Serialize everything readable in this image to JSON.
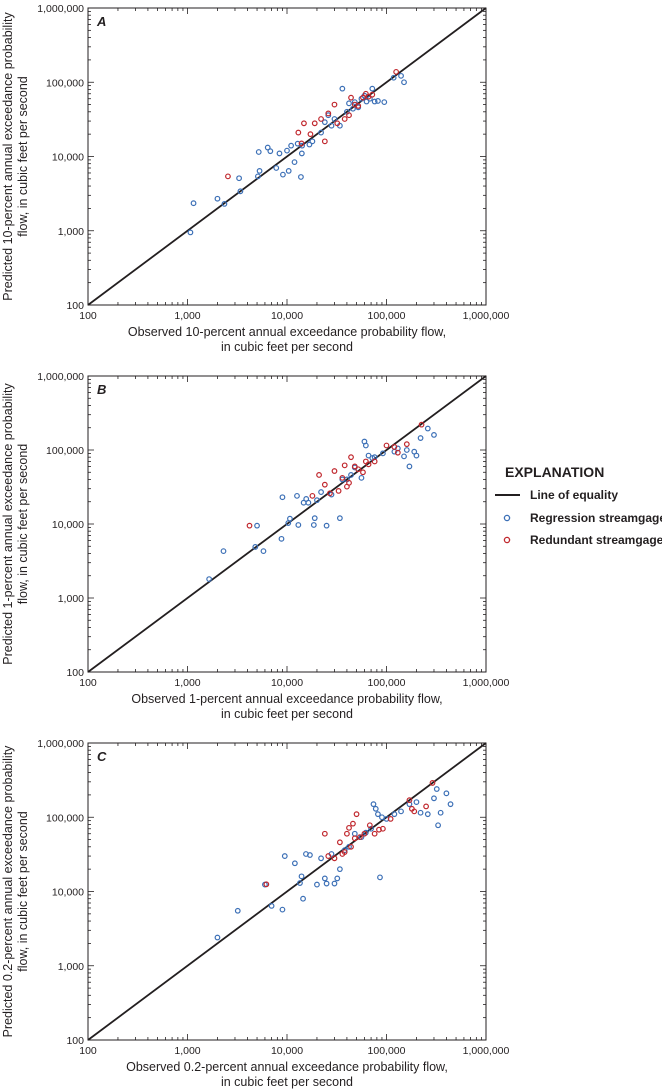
{
  "chart_data": [
    {
      "type": "scatter",
      "panel": "A",
      "xlabel": [
        "Observed 10-percent annual exceedance probability flow,",
        "in cubic feet per second"
      ],
      "ylabel": [
        "Predicted 10-percent annual exceedance probability",
        "flow, in cubic feet per second"
      ],
      "xscale": "log",
      "yscale": "log",
      "xlim": [
        100,
        1000000
      ],
      "ylim": [
        100,
        1000000
      ],
      "ticks": [
        "100",
        "1,000",
        "10,000",
        "100,000",
        "1,000,000"
      ],
      "tick_values": [
        100,
        1000,
        10000,
        100000,
        1000000
      ],
      "grid": false,
      "series": [
        {
          "name": "Regression streamgage",
          "color": "#3b6fb6",
          "points": [
            [
              1070,
              950
            ],
            [
              1150,
              2350
            ],
            [
              2000,
              2700
            ],
            [
              2350,
              2300
            ],
            [
              3400,
              3400
            ],
            [
              3300,
              5100
            ],
            [
              5100,
              5400
            ],
            [
              5300,
              6400
            ],
            [
              5200,
              11500
            ],
            [
              6400,
              13200
            ],
            [
              6800,
              11800
            ],
            [
              7800,
              7000
            ],
            [
              8400,
              11000
            ],
            [
              9100,
              5700
            ],
            [
              10000,
              12000
            ],
            [
              10400,
              6400
            ],
            [
              11000,
              14000
            ],
            [
              11900,
              8400
            ],
            [
              12800,
              14900
            ],
            [
              14100,
              11000
            ],
            [
              13800,
              5300
            ],
            [
              14200,
              14000
            ],
            [
              16800,
              14500
            ],
            [
              18000,
              16000
            ],
            [
              22000,
              21000
            ],
            [
              24000,
              29000
            ],
            [
              26000,
              36000
            ],
            [
              28000,
              26000
            ],
            [
              30000,
              32000
            ],
            [
              34000,
              26000
            ],
            [
              36000,
              82000
            ],
            [
              40000,
              40000
            ],
            [
              42000,
              52000
            ],
            [
              46000,
              44000
            ],
            [
              48000,
              54000
            ],
            [
              52000,
              46000
            ],
            [
              56000,
              60000
            ],
            [
              60000,
              66000
            ],
            [
              63000,
              55000
            ],
            [
              68000,
              60000
            ],
            [
              72000,
              82000
            ],
            [
              76000,
              55000
            ],
            [
              82000,
              56000
            ],
            [
              95000,
              54000
            ],
            [
              118000,
              115000
            ],
            [
              140000,
              122000
            ],
            [
              150000,
              100000
            ]
          ]
        },
        {
          "name": "Redundant streamgage",
          "color": "#c0272d",
          "points": [
            [
              2550,
              5400
            ],
            [
              13000,
              21000
            ],
            [
              14000,
              15000
            ],
            [
              14800,
              28000
            ],
            [
              17200,
              20000
            ],
            [
              19000,
              28000
            ],
            [
              22000,
              32000
            ],
            [
              24000,
              16000
            ],
            [
              26000,
              38000
            ],
            [
              30000,
              50000
            ],
            [
              32000,
              28000
            ],
            [
              38000,
              32000
            ],
            [
              42000,
              36000
            ],
            [
              44000,
              62000
            ],
            [
              48000,
              50000
            ],
            [
              52000,
              48000
            ],
            [
              58000,
              62000
            ],
            [
              62000,
              70000
            ],
            [
              66000,
              64000
            ],
            [
              72000,
              68000
            ],
            [
              125000,
              138000
            ]
          ]
        }
      ]
    },
    {
      "type": "scatter",
      "panel": "B",
      "xlabel": [
        "Observed 1-percent annual exceedance probability flow,",
        "in cubic feet per second"
      ],
      "ylabel": [
        "Predicted 1-percent annual exceedance probability",
        "flow, in cubic feet per second"
      ],
      "xscale": "log",
      "yscale": "log",
      "xlim": [
        100,
        1000000
      ],
      "ylim": [
        100,
        1000000
      ],
      "ticks": [
        "100",
        "1,000",
        "10,000",
        "100,000",
        "1,000,000"
      ],
      "tick_values": [
        100,
        1000,
        10000,
        100000,
        1000000
      ],
      "grid": false,
      "series": [
        {
          "name": "Regression streamgage",
          "color": "#3b6fb6",
          "points": [
            [
              1650,
              1800
            ],
            [
              2300,
              4300
            ],
            [
              4800,
              4900
            ],
            [
              5000,
              9500
            ],
            [
              5800,
              4300
            ],
            [
              8800,
              6300
            ],
            [
              9000,
              23000
            ],
            [
              10300,
              10300
            ],
            [
              10700,
              11800
            ],
            [
              13000,
              9700
            ],
            [
              12600,
              24000
            ],
            [
              14700,
              19400
            ],
            [
              15600,
              21800
            ],
            [
              16400,
              19400
            ],
            [
              18600,
              9700
            ],
            [
              19000,
              12000
            ],
            [
              20000,
              21000
            ],
            [
              22000,
              27000
            ],
            [
              25000,
              9500
            ],
            [
              28000,
              25000
            ],
            [
              34000,
              12000
            ],
            [
              36000,
              40000
            ],
            [
              40000,
              40000
            ],
            [
              44000,
              46000
            ],
            [
              48000,
              58000
            ],
            [
              56000,
              42000
            ],
            [
              60000,
              130000
            ],
            [
              62000,
              115000
            ],
            [
              66000,
              84000
            ],
            [
              72000,
              78000
            ],
            [
              76000,
              80000
            ],
            [
              92000,
              90000
            ],
            [
              120000,
              95000
            ],
            [
              130000,
              105000
            ],
            [
              150000,
              82000
            ],
            [
              160000,
              100000
            ],
            [
              170000,
              60000
            ],
            [
              190000,
              95000
            ],
            [
              200000,
              84000
            ],
            [
              220000,
              145000
            ],
            [
              260000,
              195000
            ],
            [
              300000,
              160000
            ]
          ]
        },
        {
          "name": "Redundant streamgage",
          "color": "#c0272d",
          "points": [
            [
              4200,
              9500
            ],
            [
              18000,
              24000
            ],
            [
              21000,
              46000
            ],
            [
              24000,
              34000
            ],
            [
              27000,
              26000
            ],
            [
              30000,
              52000
            ],
            [
              33000,
              28000
            ],
            [
              36000,
              42000
            ],
            [
              38000,
              62000
            ],
            [
              40000,
              32000
            ],
            [
              42000,
              36000
            ],
            [
              44000,
              80000
            ],
            [
              48000,
              60000
            ],
            [
              52000,
              55000
            ],
            [
              58000,
              50000
            ],
            [
              62000,
              70000
            ],
            [
              66000,
              64000
            ],
            [
              76000,
              70000
            ],
            [
              100000,
              115000
            ],
            [
              120000,
              110000
            ],
            [
              130000,
              92000
            ],
            [
              160000,
              120000
            ],
            [
              225000,
              220000
            ]
          ]
        }
      ]
    },
    {
      "type": "scatter",
      "panel": "C",
      "xlabel": [
        "Observed 0.2-percent annual exceedance probability flow,",
        "in cubic feet per second"
      ],
      "ylabel": [
        "Predicted 0.2-percent annual exceedance probability",
        "flow, in cubic feet per second"
      ],
      "xscale": "log",
      "yscale": "log",
      "xlim": [
        100,
        1000000
      ],
      "ylim": [
        100,
        1000000
      ],
      "ticks": [
        "100",
        "1,000",
        "10,000",
        "100,000",
        "1,000,000"
      ],
      "tick_values": [
        100,
        1000,
        10000,
        100000,
        1000000
      ],
      "grid": false,
      "series": [
        {
          "name": "Regression streamgage",
          "color": "#3b6fb6",
          "points": [
            [
              2000,
              2400
            ],
            [
              3200,
              5500
            ],
            [
              6000,
              12400
            ],
            [
              7000,
              6400
            ],
            [
              9000,
              5700
            ],
            [
              9500,
              30000
            ],
            [
              12000,
              24000
            ],
            [
              13500,
              13000
            ],
            [
              14000,
              16000
            ],
            [
              14500,
              8000
            ],
            [
              15500,
              32000
            ],
            [
              17000,
              31000
            ],
            [
              20000,
              12400
            ],
            [
              22000,
              28000
            ],
            [
              24000,
              15000
            ],
            [
              25000,
              12800
            ],
            [
              28000,
              32000
            ],
            [
              30000,
              12800
            ],
            [
              32000,
              15000
            ],
            [
              34000,
              20000
            ],
            [
              38000,
              36000
            ],
            [
              42000,
              40000
            ],
            [
              48000,
              60000
            ],
            [
              56000,
              54000
            ],
            [
              62000,
              62000
            ],
            [
              70000,
              70000
            ],
            [
              74000,
              150000
            ],
            [
              78000,
              130000
            ],
            [
              82000,
              110000
            ],
            [
              86000,
              15500
            ],
            [
              90000,
              100000
            ],
            [
              100000,
              95000
            ],
            [
              120000,
              110000
            ],
            [
              140000,
              120000
            ],
            [
              170000,
              150000
            ],
            [
              200000,
              160000
            ],
            [
              220000,
              115000
            ],
            [
              260000,
              110000
            ],
            [
              300000,
              180000
            ],
            [
              320000,
              240000
            ],
            [
              330000,
              78000
            ],
            [
              350000,
              115000
            ],
            [
              400000,
              210000
            ],
            [
              440000,
              150000
            ]
          ]
        },
        {
          "name": "Redundant streamgage",
          "color": "#c0272d",
          "points": [
            [
              6200,
              12500
            ],
            [
              24000,
              60000
            ],
            [
              26000,
              30000
            ],
            [
              30000,
              28000
            ],
            [
              34000,
              46000
            ],
            [
              36000,
              32000
            ],
            [
              38000,
              34000
            ],
            [
              40000,
              60000
            ],
            [
              42000,
              72000
            ],
            [
              44000,
              40000
            ],
            [
              46000,
              82000
            ],
            [
              48000,
              52000
            ],
            [
              50000,
              110000
            ],
            [
              54000,
              54000
            ],
            [
              60000,
              60000
            ],
            [
              68000,
              78000
            ],
            [
              76000,
              60000
            ],
            [
              84000,
              68000
            ],
            [
              92000,
              70000
            ],
            [
              110000,
              95000
            ],
            [
              170000,
              170000
            ],
            [
              180000,
              130000
            ],
            [
              190000,
              120000
            ],
            [
              250000,
              140000
            ],
            [
              290000,
              290000
            ]
          ]
        }
      ]
    }
  ],
  "legend": {
    "title": "EXPLANATION",
    "placement": "right-center",
    "items": [
      {
        "label": "Line of equality",
        "kind": "line",
        "color": "#231f20"
      },
      {
        "label": "Regression streamgage",
        "kind": "circle",
        "color": "#3b6fb6"
      },
      {
        "label": "Redundant streamgage",
        "kind": "circle",
        "color": "#c0272d"
      }
    ]
  }
}
